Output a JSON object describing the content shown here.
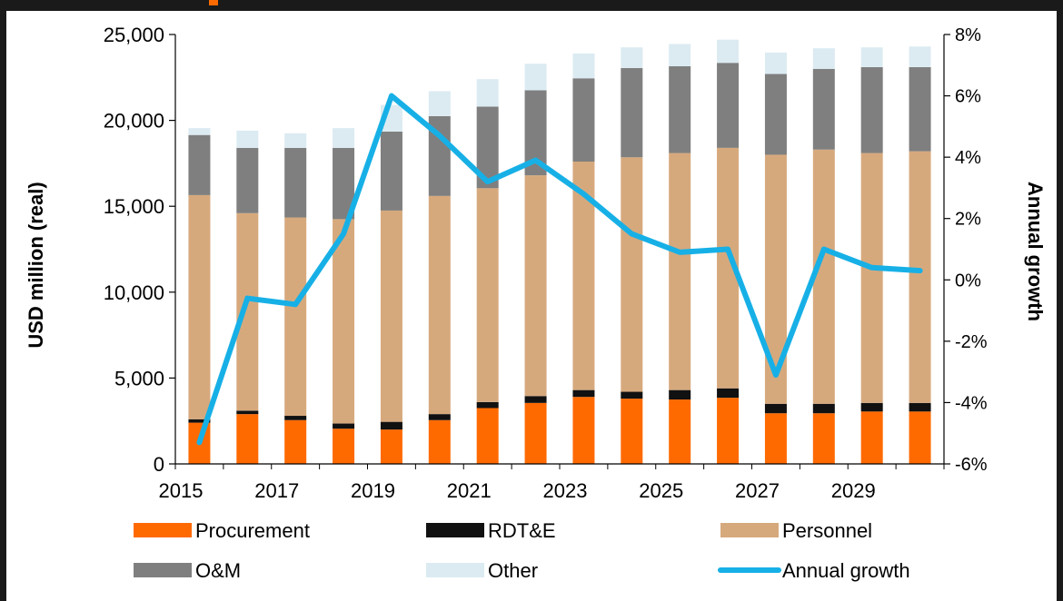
{
  "chart_data": {
    "type": "bar",
    "stacked": true,
    "categories": [
      "2015",
      "2016",
      "2017",
      "2018",
      "2019",
      "2020",
      "2021",
      "2022",
      "2023",
      "2024",
      "2025",
      "2026",
      "2027",
      "2028",
      "2029",
      "2030"
    ],
    "x_tick_labels": [
      "2015",
      "2017",
      "2019",
      "2021",
      "2023",
      "2025",
      "2027",
      "2029"
    ],
    "series": [
      {
        "name": "Procurement",
        "color": "#ff6a00",
        "values": [
          2400,
          2900,
          2550,
          2050,
          2000,
          2550,
          3250,
          3550,
          3900,
          3800,
          3750,
          3850,
          2950,
          2950,
          3050,
          3050
        ]
      },
      {
        "name": "RDT&E",
        "color": "#111111",
        "values": [
          200,
          200,
          250,
          300,
          450,
          350,
          350,
          400,
          400,
          400,
          550,
          550,
          550,
          550,
          500,
          500
        ]
      },
      {
        "name": "Personnel",
        "color": "#d6a97d",
        "values": [
          13050,
          11500,
          11550,
          11900,
          12300,
          12700,
          12450,
          12850,
          13300,
          13650,
          13800,
          14000,
          14500,
          14800,
          14550,
          14650
        ]
      },
      {
        "name": "O&M",
        "color": "#7f7f7f",
        "values": [
          3500,
          3800,
          4050,
          4150,
          4600,
          4650,
          4750,
          4950,
          4850,
          5200,
          5050,
          4950,
          4700,
          4700,
          5000,
          4900
        ]
      },
      {
        "name": "Other",
        "color": "#dcebf2",
        "values": [
          400,
          1000,
          850,
          1150,
          1550,
          1450,
          1600,
          1550,
          1450,
          1200,
          1300,
          1350,
          1250,
          1200,
          1150,
          1200
        ]
      }
    ],
    "line_series": {
      "name": "Annual growth",
      "color": "#17b0e6",
      "values": [
        -5.3,
        -0.6,
        -0.8,
        1.5,
        6.0,
        4.7,
        3.2,
        3.9,
        2.8,
        1.5,
        0.9,
        1.0,
        -3.1,
        1.0,
        0.4,
        0.3
      ]
    },
    "ylabel": "USD million (real)",
    "y2label": "Annual growth",
    "ylim": [
      0,
      25000
    ],
    "y2lim": [
      -6,
      8
    ],
    "y_ticks": [
      "0",
      "5,000",
      "10,000",
      "15,000",
      "20,000",
      "25,000"
    ],
    "y2_ticks": [
      "-6%",
      "-4%",
      "-2%",
      "0%",
      "2%",
      "4%",
      "6%",
      "8%"
    ],
    "legend_position": "bottom",
    "grid": false
  }
}
